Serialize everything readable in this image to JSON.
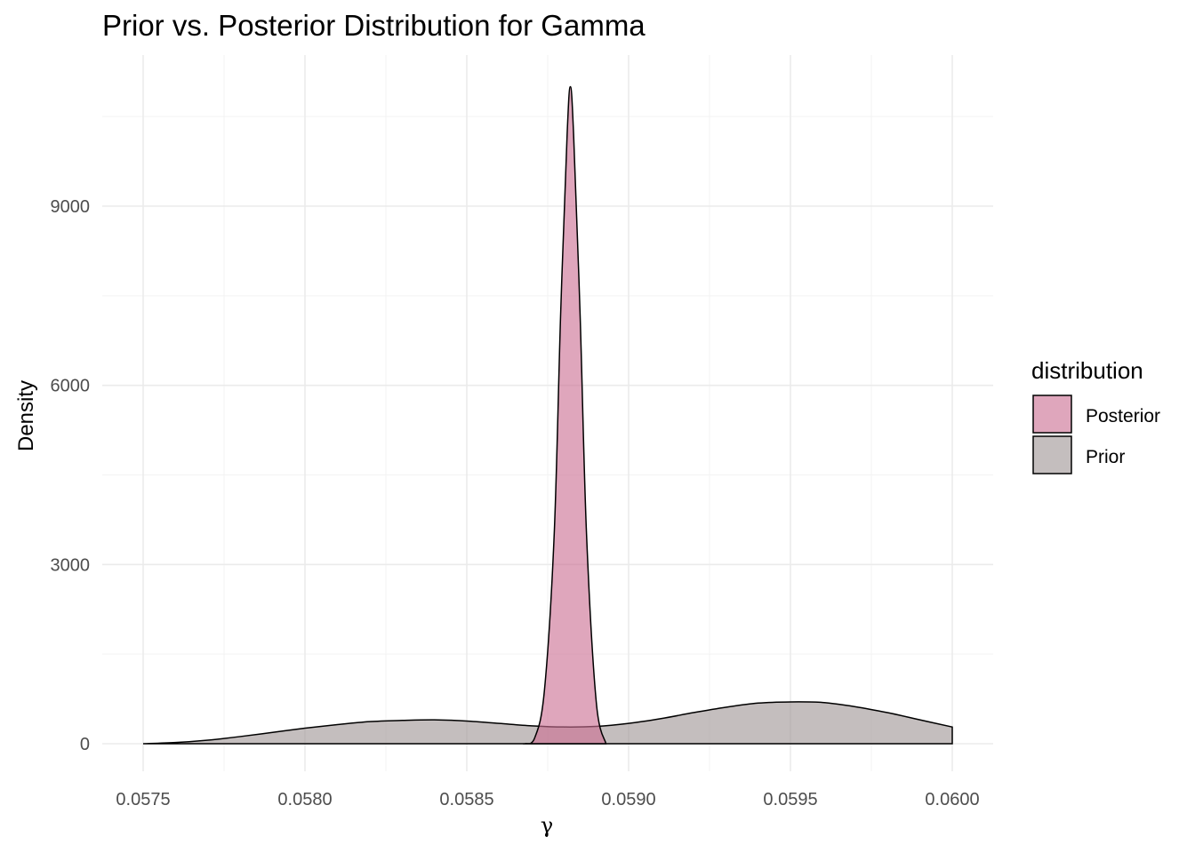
{
  "chart_data": {
    "type": "area",
    "title": "Prior vs. Posterior Distribution for Gamma",
    "xlabel": "γ",
    "ylabel": "Density",
    "xlim": [
      0.0575,
      0.06
    ],
    "ylim": [
      0,
      11000
    ],
    "xticks": [
      0.0575,
      0.058,
      0.0585,
      0.059,
      0.0595,
      0.06
    ],
    "xtick_labels": [
      "0.0575",
      "0.0580",
      "0.0585",
      "0.0590",
      "0.0595",
      "0.0600"
    ],
    "yticks": [
      0,
      3000,
      6000,
      9000
    ],
    "ytick_labels": [
      "0",
      "3000",
      "6000",
      "9000"
    ],
    "grid": true,
    "legend": {
      "title": "distribution",
      "position": "right"
    },
    "series": [
      {
        "name": "Posterior",
        "color": "#cc6f93",
        "x": [
          0.05868,
          0.05871,
          0.05874,
          0.05877,
          0.05879,
          0.05881,
          0.05882,
          0.05883,
          0.05885,
          0.05887,
          0.0589,
          0.05893
        ],
        "y": [
          0,
          100,
          900,
          3500,
          7200,
          10200,
          11000,
          10200,
          7200,
          3500,
          700,
          0
        ]
      },
      {
        "name": "Prior",
        "color": "#a09696",
        "x": [
          0.0575,
          0.0576,
          0.0577,
          0.0578,
          0.0579,
          0.058,
          0.0581,
          0.0582,
          0.0583,
          0.0584,
          0.0585,
          0.0586,
          0.0587,
          0.0588,
          0.0589,
          0.059,
          0.0591,
          0.0592,
          0.0593,
          0.0594,
          0.0595,
          0.0596,
          0.0597,
          0.0598,
          0.0599,
          0.06
        ],
        "y": [
          0,
          20,
          60,
          120,
          190,
          260,
          320,
          370,
          390,
          400,
          380,
          340,
          300,
          280,
          290,
          340,
          420,
          520,
          610,
          680,
          700,
          690,
          620,
          520,
          400,
          280
        ]
      }
    ]
  }
}
